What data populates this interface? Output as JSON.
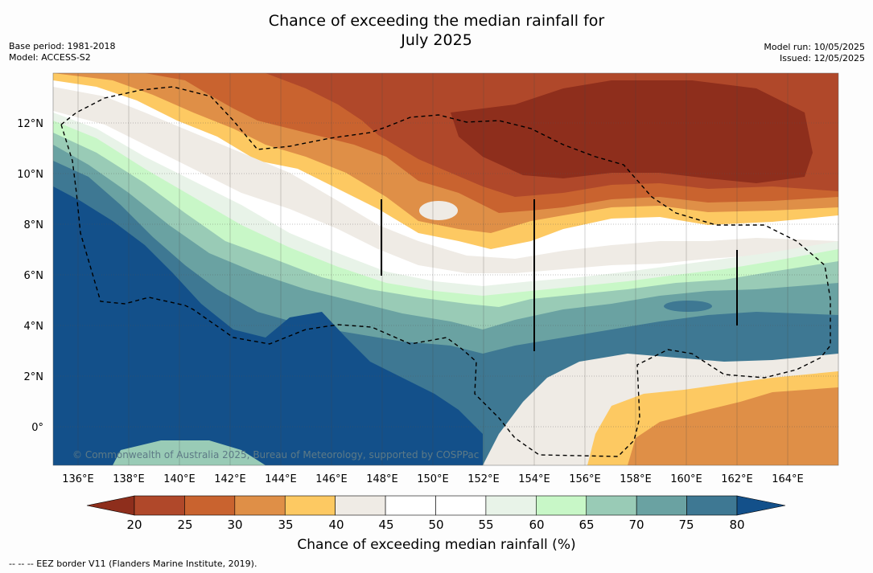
{
  "title": {
    "line1": "Chance of exceeding the median rainfall for",
    "line2": "July 2025"
  },
  "meta_left": {
    "base_period": "Base period: 1981-2018",
    "model": "Model: ACCESS-S2"
  },
  "meta_right": {
    "model_run": "Model run: 10/05/2025",
    "issued": "Issued: 12/05/2025"
  },
  "map": {
    "lat_labels": [
      "12°N",
      "10°N",
      "8°N",
      "6°N",
      "4°N",
      "2°N",
      "0°"
    ],
    "lon_labels": [
      "136°E",
      "138°E",
      "140°E",
      "142°E",
      "144°E",
      "146°E",
      "148°E",
      "150°E",
      "152°E",
      "154°E",
      "156°E",
      "158°E",
      "160°E",
      "162°E",
      "164°E"
    ],
    "copyright": "© Commonwealth of Australia 2025, Bureau of Meteorology, supported by COSPPac"
  },
  "colorbar": {
    "ticks": [
      "20",
      "25",
      "30",
      "35",
      "40",
      "45",
      "50",
      "55",
      "60",
      "65",
      "70",
      "75",
      "80"
    ],
    "colors": [
      "#8e2e1c",
      "#b0482a",
      "#c9632f",
      "#df8f47",
      "#fdc962",
      "#efebe5",
      "#ffffff",
      "#ffffff",
      "#e8f3e8",
      "#c8f7c7",
      "#99cbb6",
      "#6aa2a2",
      "#3e7893",
      "#13508a"
    ],
    "label": "Chance of exceeding median rainfall (%)"
  },
  "footer": "--  --  -- EEZ border V11 (Flanders Marine Institute, 2019)."
}
